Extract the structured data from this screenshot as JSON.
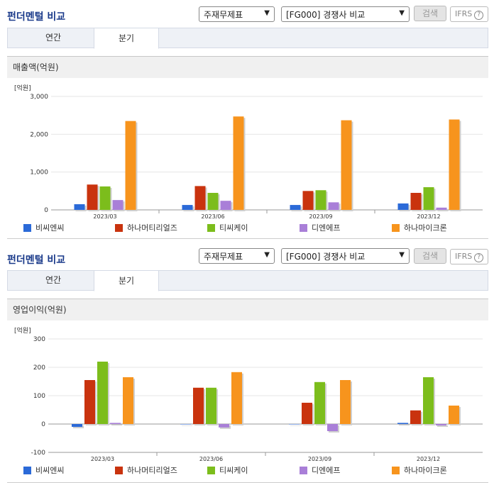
{
  "panels": [
    {
      "title": "펀더멘털 비교",
      "select1": "주재무제표",
      "select2": "[FG000] 경쟁사 비교",
      "search_label": "검색",
      "ifrs_label": "IFRS",
      "help_glyph": "?",
      "tabs": [
        {
          "label": "연간",
          "active": false
        },
        {
          "label": "분기",
          "active": true
        }
      ],
      "subhead": "매출액(억원)"
    },
    {
      "title": "펀더멘털 비교",
      "select1": "주재무제표",
      "select2": "[FG000] 경쟁사 비교",
      "search_label": "검색",
      "ifrs_label": "IFRS",
      "help_glyph": "?",
      "tabs": [
        {
          "label": "연간",
          "active": false
        },
        {
          "label": "분기",
          "active": true
        }
      ],
      "subhead": "영업이익(억원)"
    }
  ],
  "chart_data": [
    {
      "type": "bar",
      "unit_label": "[억원]",
      "categories": [
        "2023/03",
        "2023/06",
        "2023/09",
        "2023/12"
      ],
      "ylim": [
        0,
        3000
      ],
      "yticks": [
        0,
        1000,
        2000,
        3000
      ],
      "ytick_labels": [
        "0",
        "1,000",
        "2,000",
        "3,000"
      ],
      "legend_position": "bottom",
      "series": [
        {
          "name": "비씨엔씨",
          "color": "#2b6ad8",
          "values": [
            150,
            130,
            130,
            170
          ]
        },
        {
          "name": "하나머티리얼즈",
          "color": "#c9330e",
          "values": [
            670,
            630,
            500,
            450
          ]
        },
        {
          "name": "티씨케이",
          "color": "#7cbd1c",
          "values": [
            620,
            450,
            520,
            600
          ]
        },
        {
          "name": "디엔에프",
          "color": "#a97fd8",
          "values": [
            260,
            240,
            200,
            60
          ]
        },
        {
          "name": "하나마이크론",
          "color": "#f7941d",
          "values": [
            2350,
            2470,
            2370,
            2390
          ]
        }
      ]
    },
    {
      "type": "bar",
      "unit_label": "[억원]",
      "categories": [
        "2023/03",
        "2023/06",
        "2023/09",
        "2023/12"
      ],
      "ylim": [
        -100,
        300
      ],
      "yticks": [
        -100,
        0,
        100,
        200,
        300
      ],
      "ytick_labels": [
        "-100",
        "0",
        "100",
        "200",
        "300"
      ],
      "legend_position": "bottom",
      "series": [
        {
          "name": "비씨엔씨",
          "color": "#2b6ad8",
          "values": [
            -10,
            0,
            0,
            4
          ]
        },
        {
          "name": "하나머티리얼즈",
          "color": "#c9330e",
          "values": [
            155,
            128,
            75,
            48
          ]
        },
        {
          "name": "티씨케이",
          "color": "#7cbd1c",
          "values": [
            220,
            128,
            148,
            165
          ]
        },
        {
          "name": "디엔에프",
          "color": "#a97fd8",
          "values": [
            4,
            -12,
            -25,
            -5
          ]
        },
        {
          "name": "하나마이크론",
          "color": "#f7941d",
          "values": [
            165,
            183,
            155,
            65
          ]
        }
      ]
    }
  ]
}
